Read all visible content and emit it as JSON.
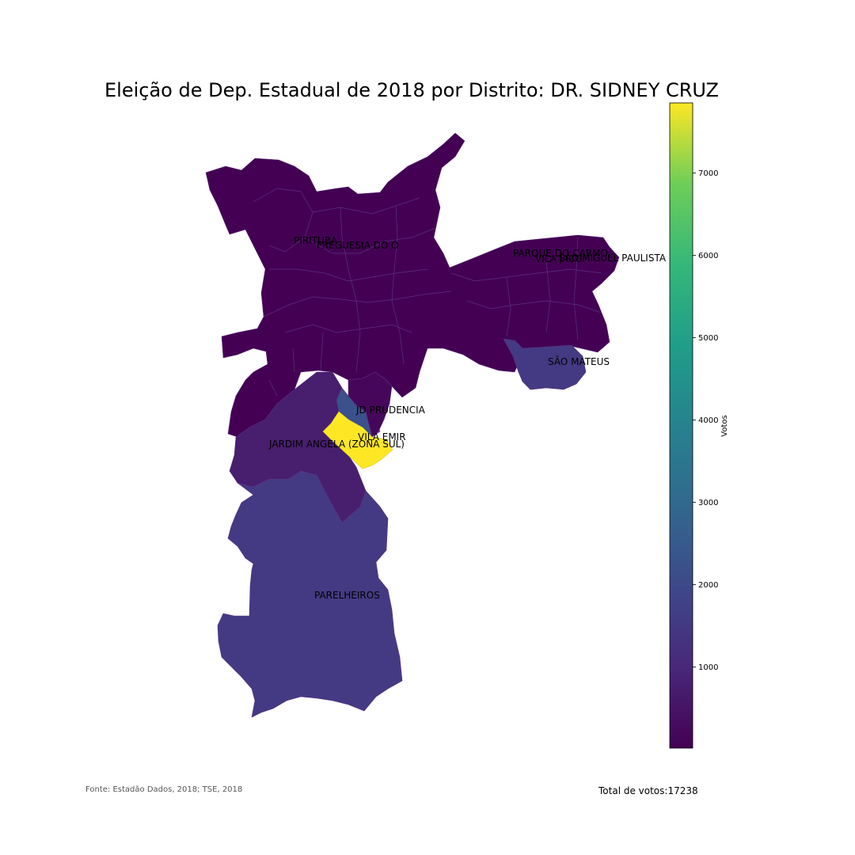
{
  "title": "Eleição de Dep. Estadual de 2018 por Distrito: DR. SIDNEY CRUZ",
  "source": "Fonte: Estadão Dados, 2018; TSE, 2018",
  "total_label": "Total de votos:17238",
  "colorbar": {
    "label": "Votos",
    "ticks": [
      1000,
      2000,
      3000,
      4000,
      5000,
      6000,
      7000
    ],
    "range": [
      15,
      7850
    ],
    "colormap": "viridis"
  },
  "districts": [
    {
      "name": "PIRITUBA",
      "votes": 80
    },
    {
      "name": "FREGUESIA DO Ó",
      "votes": 120
    },
    {
      "name": "PARQUE DO CARMO",
      "votes": 110
    },
    {
      "name": "VILA JACUÍ",
      "votes": 100
    },
    {
      "name": "SÃO MIGUEL PAULISTA",
      "votes": 140
    },
    {
      "name": "SÃO MATEUS",
      "votes": 1350
    },
    {
      "name": "JD PRUDENCIA",
      "votes": 1900
    },
    {
      "name": "VILA EMIR",
      "votes": 7850
    },
    {
      "name": "JARDIM ANGELA (ZONA SUL)",
      "votes": 700
    },
    {
      "name": "PARELHEIROS",
      "votes": 1450
    }
  ],
  "labels": {
    "pirituba": "PIRITUBA",
    "freguesia": "FREGUESIA DO Ó",
    "parque_carmo": "PARQUE DO CARMO",
    "vila_jacui": "VILA JACUÍ",
    "sao_miguel": "SÃO MIGUEL PAULISTA",
    "sao_mateus": "SÃO MATEUS",
    "jd_prudencia": "JD PRUDENCIA",
    "vila_emir": "VILA EMIR",
    "jardim_angela": "JARDIM ANGELA (ZONA SUL)",
    "parelheiros": "PARELHEIROS"
  },
  "colors": {
    "low": "#440154",
    "low2": "#46075a",
    "mid_purple": "#481e6f",
    "blue_purple": "#443a83",
    "slate": "#3b518b",
    "yellow": "#fde725"
  }
}
